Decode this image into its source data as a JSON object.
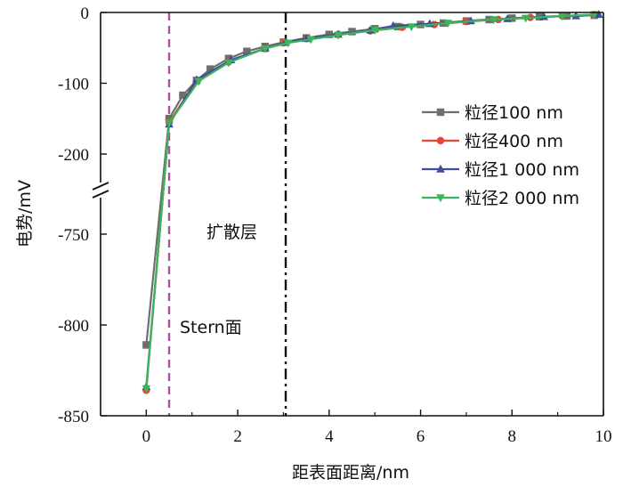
{
  "chart_data": {
    "type": "line",
    "xlabel": "距表面距离/nm",
    "ylabel": "电势/mV",
    "xlim": [
      -1,
      10
    ],
    "x_ticks": [
      "0",
      "2",
      "4",
      "6",
      "8",
      "10"
    ],
    "y_ticks_upper": [
      "0",
      "-100",
      "-200"
    ],
    "y_ticks_lower": [
      "-750",
      "-800",
      "-850"
    ],
    "y_segments": {
      "upper": [
        -250,
        0
      ],
      "lower": [
        -850,
        -760
      ]
    },
    "grid": false,
    "legend_position": "right",
    "annotations": {
      "stern": "Stern面",
      "diffuse": "扩散层"
    },
    "reference_lines": [
      {
        "x": 0.5,
        "style": "dashed",
        "color": "#a0589a",
        "label": "stern"
      },
      {
        "x": 3.05,
        "style": "dash-dot",
        "color": "#111111",
        "label": "diffuse"
      }
    ],
    "series": [
      {
        "name": "粒径100 nm",
        "color": "#6e6e6e",
        "marker": "square",
        "x": [
          0,
          0.5,
          0.8,
          1.1,
          1.4,
          1.8,
          2.2,
          2.6,
          3.0,
          3.5,
          4.0,
          4.5,
          5.0,
          5.5,
          6.0,
          6.5,
          7.0,
          7.5,
          8.0,
          8.6,
          9.2,
          9.8
        ],
        "y": [
          -811,
          -150,
          -117,
          -96,
          -80,
          -65,
          -55,
          -48,
          -42,
          -36,
          -31,
          -27,
          -23,
          -20,
          -17,
          -15,
          -12,
          -10,
          -8,
          -6,
          -5,
          -4
        ]
      },
      {
        "name": "粒径400 nm",
        "color": "#e8443a",
        "marker": "circle",
        "x": [
          0,
          0.5,
          1.1,
          1.8,
          2.6,
          3.0,
          3.5,
          4.2,
          4.9,
          5.6,
          6.3,
          7.0,
          7.7,
          8.4,
          9.1,
          9.8
        ],
        "y": [
          -836,
          -155,
          -97,
          -70,
          -51,
          -43,
          -37,
          -31,
          -26,
          -21,
          -17,
          -13,
          -10,
          -7,
          -5,
          -3
        ]
      },
      {
        "name": "粒径1 000 nm",
        "color": "#3d4f9a",
        "marker": "triangle-up",
        "x": [
          0,
          0.5,
          1.1,
          1.85,
          2.6,
          3.05,
          3.5,
          4.2,
          4.9,
          5.4,
          6.2,
          7.1,
          7.9,
          8.7,
          9.4,
          9.9
        ],
        "y": [
          -834,
          -158,
          -95,
          -67,
          -51,
          -42,
          -37,
          -31,
          -25,
          -19,
          -16,
          -12,
          -9,
          -6,
          -5,
          -3
        ]
      },
      {
        "name": "粒径2 000 nm",
        "color": "#3cb55a",
        "marker": "triangle-down",
        "x": [
          0,
          0.5,
          1.15,
          1.8,
          2.6,
          3.1,
          3.6,
          4.2,
          5.0,
          5.8,
          6.6,
          7.6,
          8.3,
          9.1,
          9.8
        ],
        "y": [
          -835,
          -156,
          -97,
          -71,
          -51,
          -43,
          -38,
          -32,
          -25,
          -20,
          -15,
          -10,
          -8,
          -5,
          -3
        ]
      }
    ]
  }
}
